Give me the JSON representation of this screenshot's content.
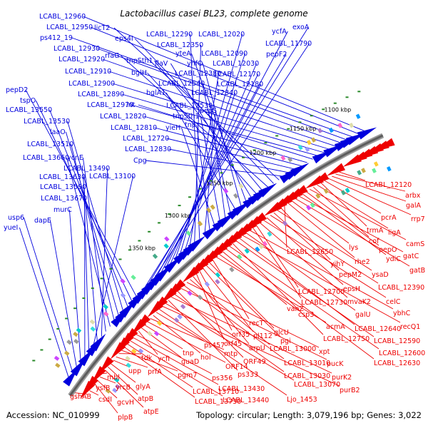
{
  "title": "Lactobacillus casei BL23, complete genome",
  "footer": {
    "accession": "Accession: NC_010999",
    "summary": "Topology: circular; Length: 3,079,196 bp; Genes: 3,022"
  },
  "colors": {
    "forward": "#0000dd",
    "reverse": "#ee0000",
    "backbone": "#777777",
    "tick": "#2a8a2a"
  },
  "kbp_labels": [
    "1100 kbp",
    "1150 kbp",
    "1200 kbp",
    "1250 kbp",
    "1300 kbp",
    "1350 kbp"
  ],
  "forward_labels": [
    "LCABL_12960",
    "LCABL_12950",
    "ps412_19",
    "LCABL_12930",
    "LCABL_12920",
    "LCABL_12910",
    "LCABL_12900",
    "LCABL_12890",
    "LCABL_12970",
    "int",
    "LCABL_12820",
    "LCABL_12810",
    "LCABL_12720",
    "LCABL_12830",
    "Cpg",
    "licT2",
    "eps4I",
    "rfaG",
    "tnpSth1",
    "bglH",
    "flaV",
    "yteA",
    "yhfO",
    "bglA1",
    "LCABL_12540",
    "LCABL_12530",
    "tnpSth1",
    "yieH",
    "tnp",
    "pepS",
    "LCABL_12290",
    "LCABL_12350",
    "LCABL_12380",
    "LCABL_12340",
    "LCABL_12020",
    "LCABL_12090",
    "LCABL_12030",
    "LCABL_12170",
    "LCABL_12180",
    "ycfA",
    "LCABL_11790",
    "pepF2",
    "exoA",
    "pepD2",
    "tspO",
    "LCABL_13550",
    "LCABL_13530",
    "laaO",
    "LCABL_13510",
    "LCABL_13660",
    "ycnE",
    "LCABL_13490",
    "LCABL_13630",
    "LCABL_13100",
    "LCABL_13590",
    "LCABL_13670",
    "murC",
    "dapE",
    "usp6",
    "yueI"
  ],
  "reverse_labels": [
    "LCABL_12120",
    "arbx",
    "galA",
    "rrp7",
    "pcrA",
    "trmA",
    "ligA",
    "cof",
    "camS",
    "pepO",
    "ydiC",
    "gatC",
    "gatB",
    "lys",
    "rhe2",
    "LCABL_12650",
    "yihY",
    "ysaD",
    "pepM2",
    "LCABL_12390",
    "epsH",
    "celC",
    "mvaK2",
    "LCABL_12700",
    "LCABL_12730",
    "ybhC",
    "galU",
    "recQ1",
    "LCABL_12640",
    "LCABL_12590",
    "LCABL_12750",
    "LCABL_12600",
    "LCABL_12630",
    "vanZ",
    "csp3",
    "acmA",
    "recT",
    "glcU",
    "pgi",
    "pl112",
    "orf35",
    "orf45",
    "arpU",
    "LCABL_13000",
    "xpt",
    "LCABL_13010",
    "pucK",
    "ORF49",
    "LCABL_13030",
    "purK2",
    "ps333",
    "LCABL_13070",
    "purB2",
    "Ljo_1453",
    "ps457",
    "hol",
    "mtp",
    "ORF14",
    "tnp",
    "guaD",
    "ycfI",
    "ps356",
    "LCABL_13430",
    "LCABL_13440",
    "LCABL_13710",
    "LCABL_13730",
    "pgm7",
    "tdk",
    "prfA",
    "upp",
    "glyA",
    "atpB",
    "atpE",
    "mbl",
    "yrcB",
    "gcvH",
    "plpB",
    "ysfB",
    "csdI",
    "gshAB"
  ]
}
